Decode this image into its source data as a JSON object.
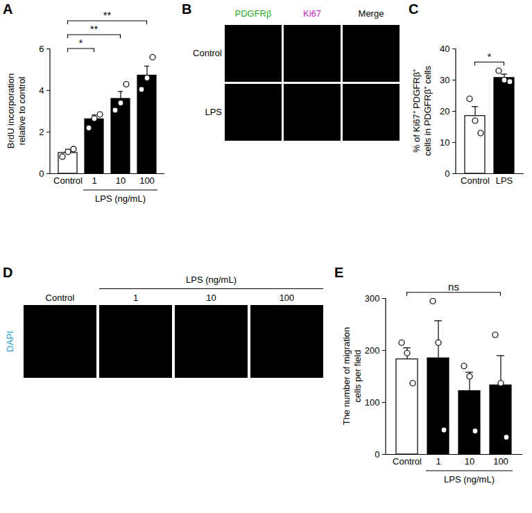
{
  "chart_data": [
    {
      "type": "bar",
      "panel": "A",
      "categories": [
        "Control",
        "1",
        "10",
        "100"
      ],
      "group_label": "LPS (ng/mL)",
      "group_categories": [
        "1",
        "10",
        "100"
      ],
      "values": [
        1.0,
        2.62,
        3.6,
        4.72
      ],
      "errors": [
        0.17,
        0.2,
        0.35,
        0.45
      ],
      "points": [
        [
          0.82,
          1.05,
          1.18
        ],
        [
          2.2,
          2.65,
          2.85
        ],
        [
          3.05,
          3.4,
          4.3
        ],
        [
          4.05,
          4.6,
          5.6
        ]
      ],
      "colors": [
        "#ffffff",
        "#000000",
        "#000000",
        "#000000"
      ],
      "y_label": "BrdU incorporation relative to control",
      "ylim": [
        0,
        6
      ],
      "yticks": [
        0,
        2,
        4,
        6
      ],
      "significance": [
        {
          "from": "Control",
          "to": "1",
          "label": "*"
        },
        {
          "from": "Control",
          "to": "10",
          "label": "**"
        },
        {
          "from": "Control",
          "to": "100",
          "label": "**"
        }
      ]
    },
    {
      "type": "bar",
      "panel": "C",
      "categories": [
        "Control",
        "LPS"
      ],
      "values": [
        18.5,
        30.7
      ],
      "errors": [
        3.0,
        1.2
      ],
      "points": [
        [
          24,
          17,
          13
        ],
        [
          33,
          30,
          29.5
        ]
      ],
      "colors": [
        "#ffffff",
        "#000000"
      ],
      "y_label": "% of Ki67⁺ PDGFRβ⁺ cells in PDGFRβ⁺ cells",
      "ylim": [
        0,
        40
      ],
      "yticks": [
        0,
        10,
        20,
        30,
        40
      ],
      "significance": [
        {
          "from": "Control",
          "to": "LPS",
          "label": "*"
        }
      ]
    },
    {
      "type": "bar",
      "panel": "E",
      "categories": [
        "Control",
        "1",
        "10",
        "100"
      ],
      "group_label": "LPS (ng/mL)",
      "group_categories": [
        "1",
        "10",
        "100"
      ],
      "values": [
        183,
        185,
        122,
        133
      ],
      "errors": [
        22,
        72,
        36,
        57
      ],
      "points": [
        [
          215,
          195,
          137
        ],
        [
          295,
          215,
          47
        ],
        [
          170,
          150,
          45
        ],
        [
          230,
          137,
          33
        ]
      ],
      "colors": [
        "#ffffff",
        "#000000",
        "#000000",
        "#000000"
      ],
      "y_label": "The number of migration cells per field",
      "ylim": [
        0,
        300
      ],
      "yticks": [
        0,
        100,
        200,
        300
      ],
      "significance": [
        {
          "from": "Control",
          "to": "100",
          "label": "ns"
        }
      ]
    }
  ],
  "image_panels": [
    {
      "panel": "B",
      "columns": [
        {
          "label": "PDGFRβ",
          "color": "#1fae1f"
        },
        {
          "label": "Ki67",
          "color": "#c21fc2"
        },
        {
          "label": "Merge",
          "color": "#000000"
        }
      ],
      "rows": [
        "Control",
        "LPS"
      ]
    },
    {
      "panel": "D",
      "channel": {
        "label": "DAPI",
        "color": "#1f9fd0"
      },
      "columns": [
        "Control",
        "1",
        "10",
        "100"
      ],
      "group_label": "LPS (ng/mL)",
      "group_columns": [
        "1",
        "10",
        "100"
      ]
    }
  ]
}
